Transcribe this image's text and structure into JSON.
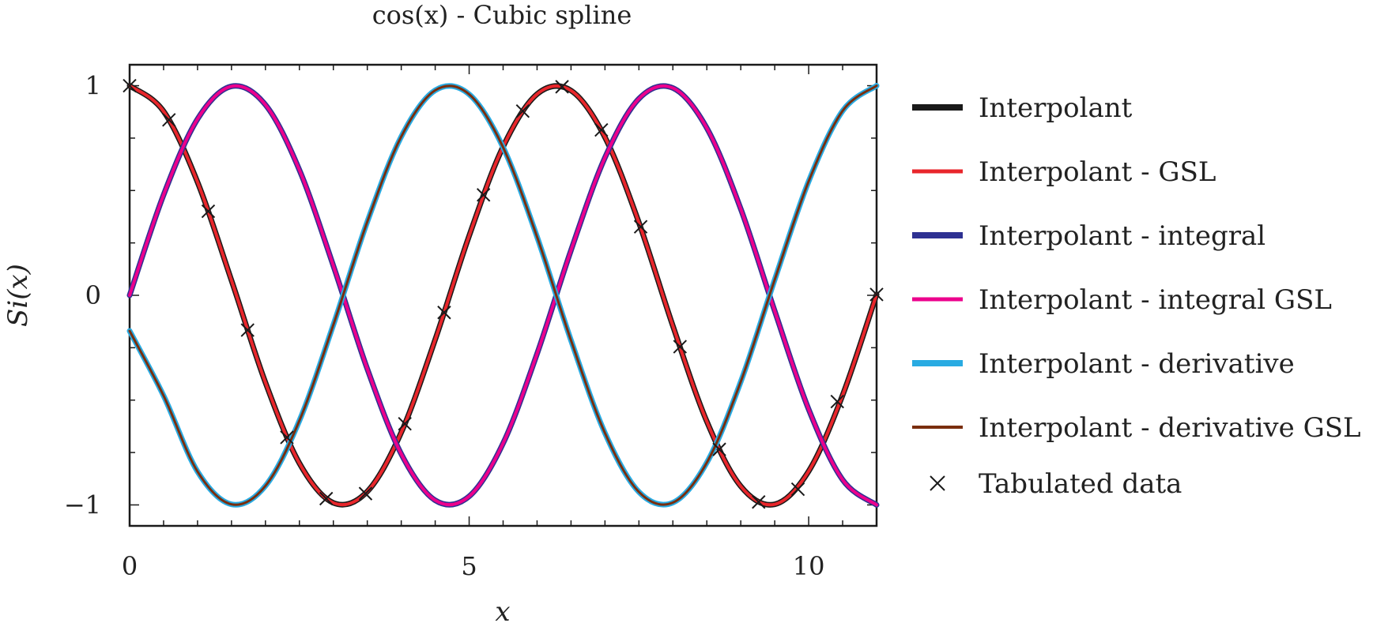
{
  "chart_data": {
    "type": "line",
    "title": "cos(x) - Cubic spline",
    "xlabel": "x",
    "ylabel": "S_i(x)",
    "ylabel_display": "Si(x)",
    "xlim": [
      0,
      11
    ],
    "ylim": [
      -1.1,
      1.1
    ],
    "x_ticks": [
      0,
      5,
      10
    ],
    "x_tick_labels": [
      "0",
      "5",
      "10"
    ],
    "y_ticks": [
      1,
      0,
      -1
    ],
    "y_tick_labels": [
      "1",
      "0",
      "−1"
    ],
    "grid": false,
    "legend_position": "right",
    "series": [
      {
        "name": "Interpolant",
        "function": "cos(x)",
        "color": "#1a1a1a",
        "x": [
          0,
          0.5,
          1,
          1.5,
          2,
          2.5,
          3,
          3.5,
          4,
          4.5,
          5,
          5.5,
          6,
          6.5,
          7,
          7.5,
          8,
          8.5,
          9,
          9.5,
          10,
          10.5,
          11
        ],
        "values": [
          1.0,
          0.878,
          0.54,
          0.071,
          -0.416,
          -0.801,
          -0.99,
          -0.936,
          -0.654,
          -0.211,
          0.284,
          0.709,
          0.96,
          0.977,
          0.754,
          0.347,
          -0.146,
          -0.602,
          -0.911,
          -0.997,
          -0.839,
          -0.476,
          0.004
        ]
      },
      {
        "name": "Interpolant - GSL",
        "function": "cos(x)",
        "color": "#e8262b",
        "x": [
          0,
          0.5,
          1,
          1.5,
          2,
          2.5,
          3,
          3.5,
          4,
          4.5,
          5,
          5.5,
          6,
          6.5,
          7,
          7.5,
          8,
          8.5,
          9,
          9.5,
          10,
          10.5,
          11
        ],
        "values": [
          1.0,
          0.878,
          0.54,
          0.071,
          -0.416,
          -0.801,
          -0.99,
          -0.936,
          -0.654,
          -0.211,
          0.284,
          0.709,
          0.96,
          0.977,
          0.754,
          0.347,
          -0.146,
          -0.602,
          -0.911,
          -0.997,
          -0.839,
          -0.476,
          0.004
        ]
      },
      {
        "name": "Interpolant - integral",
        "function": "sin(x)",
        "color": "#2e3192",
        "x": [
          0,
          0.5,
          1,
          1.5,
          2,
          2.5,
          3,
          3.5,
          4,
          4.5,
          5,
          5.5,
          6,
          6.5,
          7,
          7.5,
          8,
          8.5,
          9,
          9.5,
          10,
          10.5,
          11
        ],
        "values": [
          0.0,
          0.479,
          0.841,
          0.997,
          0.909,
          0.598,
          0.141,
          -0.351,
          -0.757,
          -0.978,
          -0.959,
          -0.706,
          -0.279,
          0.215,
          0.657,
          0.938,
          0.989,
          0.798,
          0.412,
          -0.075,
          -0.544,
          -0.88,
          -1.0
        ]
      },
      {
        "name": "Interpolant - integral GSL",
        "function": "sin(x)",
        "color": "#ec008c",
        "x": [
          0,
          0.5,
          1,
          1.5,
          2,
          2.5,
          3,
          3.5,
          4,
          4.5,
          5,
          5.5,
          6,
          6.5,
          7,
          7.5,
          8,
          8.5,
          9,
          9.5,
          10,
          10.5,
          11
        ],
        "values": [
          0.0,
          0.479,
          0.841,
          0.997,
          0.909,
          0.598,
          0.141,
          -0.351,
          -0.757,
          -0.978,
          -0.959,
          -0.706,
          -0.279,
          0.215,
          0.657,
          0.938,
          0.989,
          0.798,
          0.412,
          -0.075,
          -0.544,
          -0.88,
          -1.0
        ]
      },
      {
        "name": "Interpolant - derivative",
        "function": "-sin(x)",
        "color": "#29abe2",
        "x": [
          0,
          0.5,
          1,
          1.5,
          2,
          2.5,
          3,
          3.5,
          4,
          4.5,
          5,
          5.5,
          6,
          6.5,
          7,
          7.5,
          8,
          8.5,
          9,
          9.5,
          10,
          10.5,
          11
        ],
        "values": [
          -0.17,
          -0.479,
          -0.841,
          -0.997,
          -0.909,
          -0.598,
          -0.141,
          0.351,
          0.757,
          0.978,
          0.959,
          0.706,
          0.279,
          -0.215,
          -0.657,
          -0.938,
          -0.989,
          -0.798,
          -0.412,
          0.075,
          0.544,
          0.88,
          1.0
        ]
      },
      {
        "name": "Interpolant - derivative GSL",
        "function": "-sin(x)",
        "color": "#7a2e0e",
        "x": [
          0,
          0.5,
          1,
          1.5,
          2,
          2.5,
          3,
          3.5,
          4,
          4.5,
          5,
          5.5,
          6,
          6.5,
          7,
          7.5,
          8,
          8.5,
          9,
          9.5,
          10,
          10.5,
          11
        ],
        "values": [
          -0.17,
          -0.479,
          -0.841,
          -0.997,
          -0.909,
          -0.598,
          -0.141,
          0.351,
          0.757,
          0.978,
          0.959,
          0.706,
          0.279,
          -0.215,
          -0.657,
          -0.938,
          -0.989,
          -0.798,
          -0.412,
          0.075,
          0.544,
          0.88,
          1.0
        ]
      }
    ],
    "tabulated_data": {
      "name": "Tabulated data",
      "marker": "x",
      "color": "#1a1a1a",
      "x": [
        0,
        0.579,
        1.158,
        1.737,
        2.316,
        2.895,
        3.474,
        4.053,
        4.632,
        5.211,
        5.789,
        6.368,
        6.947,
        7.526,
        8.105,
        8.684,
        9.263,
        9.842,
        10.421,
        11.0
      ],
      "y": [
        1.0,
        0.837,
        0.401,
        -0.166,
        -0.678,
        -0.97,
        -0.946,
        -0.613,
        -0.082,
        0.479,
        0.879,
        0.995,
        0.789,
        0.327,
        -0.245,
        -0.735,
        -0.986,
        -0.925,
        -0.507,
        0.004
      ]
    }
  }
}
